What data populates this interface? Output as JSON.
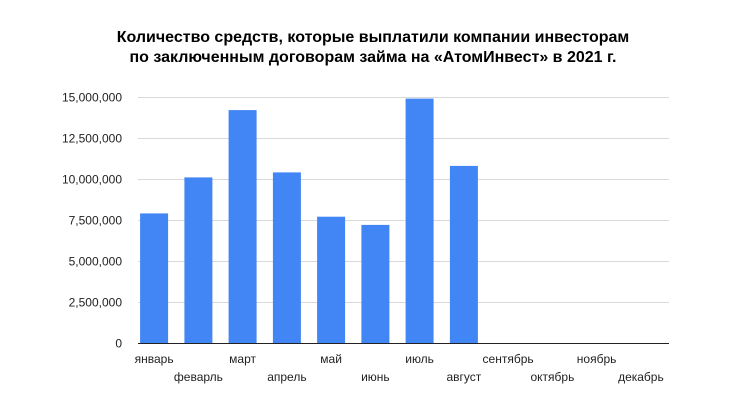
{
  "chart_data": {
    "type": "bar",
    "title_lines": [
      "Количество средств, которые выплатили компании инвесторам",
      "по заключенным договорам займа на «АтомИнвест» в 2021 г."
    ],
    "categories": [
      "январь",
      "феварль",
      "март",
      "апрель",
      "май",
      "июнь",
      "июль",
      "август",
      "сентябрь",
      "октябрь",
      "ноябрь",
      "декабрь"
    ],
    "values": [
      7900000,
      10100000,
      14200000,
      10400000,
      7700000,
      7200000,
      14900000,
      10800000,
      0,
      0,
      0,
      0
    ],
    "xlabel": "",
    "ylabel": "",
    "ylim": [
      0,
      15000000
    ],
    "yticks": [
      0,
      2500000,
      5000000,
      7500000,
      10000000,
      12500000,
      15000000
    ],
    "ytick_labels": [
      "0",
      "2,500,000",
      "5,000,000",
      "7,500,000",
      "10,000,000",
      "12,500,000",
      "15,000,000"
    ],
    "grid": true,
    "legend": "none",
    "colors": {
      "bar": "#4285F4",
      "grid": "#D9D9D9",
      "axis": "#222222"
    }
  }
}
